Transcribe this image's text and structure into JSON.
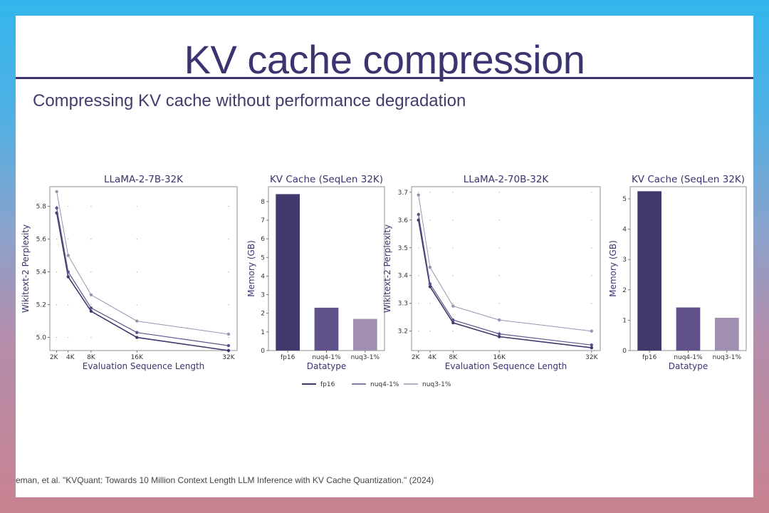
{
  "slide": {
    "title": "KV cache compression",
    "subtitle": "Compressing KV cache without performance degradation",
    "citation": "eman, et al. \"KVQuant: Towards 10 Million Context Length LLM Inference with KV Cache Quantization.\" (2024)"
  },
  "colors": {
    "fp16": "#3f3a6b",
    "nuq4": "#62528c",
    "nuq3": "#a08fb0",
    "accent": "#3a3470"
  },
  "legend": [
    "fp16",
    "nuq4-1%",
    "nuq3-1%"
  ],
  "chart_data": [
    {
      "type": "line",
      "title": "LLaMA-2-7B-32K",
      "xlabel": "Evaluation Sequence Length",
      "ylabel": "Wikitext-2 Perplexity",
      "x": [
        2,
        4,
        8,
        16,
        32
      ],
      "xticklabels": [
        "2K",
        "4K",
        "8K",
        "16K",
        "32K"
      ],
      "xlim": [
        0.8,
        33.5
      ],
      "ylim": [
        4.92,
        5.92
      ],
      "yticks": [
        5.0,
        5.2,
        5.4,
        5.6,
        5.8
      ],
      "series": [
        {
          "name": "fp16",
          "values": [
            5.76,
            5.37,
            5.16,
            5.0,
            4.92
          ]
        },
        {
          "name": "nuq4-1%",
          "values": [
            5.79,
            5.4,
            5.18,
            5.03,
            4.95
          ]
        },
        {
          "name": "nuq3-1%",
          "values": [
            5.89,
            5.5,
            5.26,
            5.1,
            5.02
          ]
        }
      ]
    },
    {
      "type": "bar",
      "title": "KV Cache (SeqLen 32K)",
      "xlabel": "Datatype",
      "ylabel": "Memory (GB)",
      "categories": [
        "fp16",
        "nuq4-1%",
        "nuq3-1%"
      ],
      "values": [
        8.4,
        2.3,
        1.7
      ],
      "ylim": [
        0,
        8.8
      ],
      "yticks": [
        0,
        1,
        2,
        3,
        4,
        5,
        6,
        7,
        8
      ]
    },
    {
      "type": "line",
      "title": "LLaMA-2-70B-32K",
      "xlabel": "Evaluation Sequence Length",
      "ylabel": "Wikitext-2 Perplexity",
      "x": [
        2,
        4,
        8,
        16,
        32
      ],
      "xticklabels": [
        "2K",
        "4K",
        "8K",
        "16K",
        "32K"
      ],
      "xlim": [
        0.8,
        33.5
      ],
      "ylim": [
        3.13,
        3.72
      ],
      "yticks": [
        3.2,
        3.3,
        3.4,
        3.5,
        3.6,
        3.7
      ],
      "series": [
        {
          "name": "fp16",
          "values": [
            3.6,
            3.36,
            3.23,
            3.18,
            3.14
          ]
        },
        {
          "name": "nuq4-1%",
          "values": [
            3.62,
            3.37,
            3.24,
            3.19,
            3.15
          ]
        },
        {
          "name": "nuq3-1%",
          "values": [
            3.69,
            3.43,
            3.29,
            3.24,
            3.2
          ]
        }
      ]
    },
    {
      "type": "bar",
      "title": "KV Cache (SeqLen 32K)",
      "xlabel": "Datatype",
      "ylabel": "Memory (GB)",
      "categories": [
        "fp16",
        "nuq4-1%",
        "nuq3-1%"
      ],
      "values": [
        5.25,
        1.42,
        1.08
      ],
      "ylim": [
        0,
        5.4
      ],
      "yticks": [
        0,
        1,
        2,
        3,
        4,
        5
      ]
    }
  ]
}
